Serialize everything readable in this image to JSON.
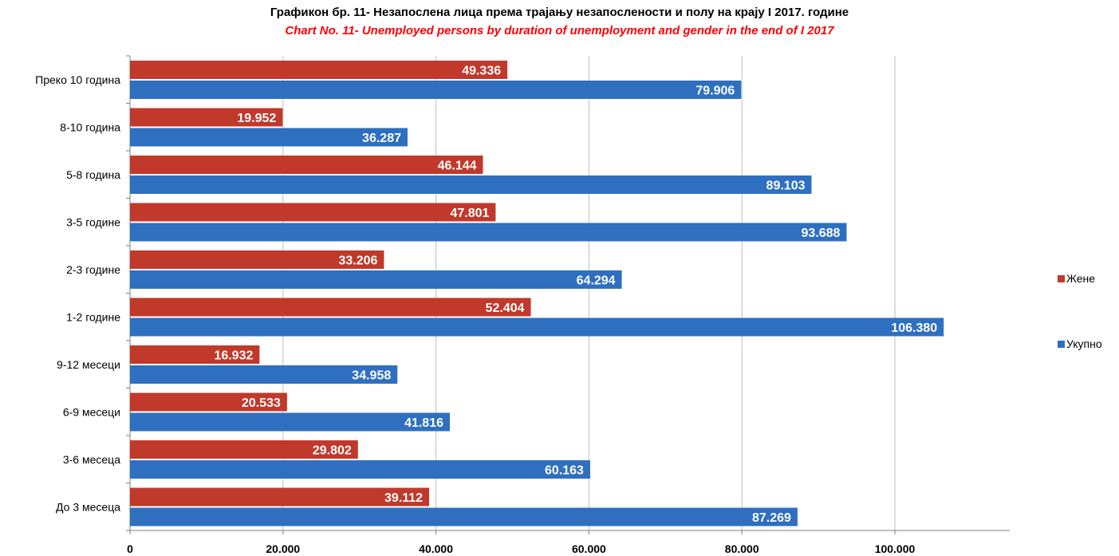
{
  "chart_data": {
    "type": "bar",
    "orientation": "horizontal",
    "title": "Графикон  бр. 11- Незапослена лица према трајању незапослености и полу на крају I 2017. године",
    "subtitle": "Chart No. 11- Unemployed persons by duration of unemployment and  gender in the end of I 2017",
    "categories": [
      "Преко 10 година",
      "8-10 година",
      "5-8 година",
      "3-5 године",
      "2-3 године",
      "1-2 године",
      "9-12 месеци",
      "6-9 месеци",
      "3-6 месеца",
      "До 3 месеца"
    ],
    "series": [
      {
        "name": "Жене",
        "color": "#c0392b",
        "values": [
          49336,
          19952,
          46144,
          47801,
          33206,
          52404,
          16932,
          20533,
          29802,
          39112
        ],
        "labels": [
          "49.336",
          "19.952",
          "46.144",
          "47.801",
          "33.206",
          "52.404",
          "16.932",
          "20.533",
          "29.802",
          "39.112"
        ]
      },
      {
        "name": "Укупно",
        "color": "#2e6fc0",
        "values": [
          79906,
          36287,
          89103,
          93688,
          64294,
          106380,
          34958,
          41816,
          60163,
          87269
        ],
        "labels": [
          "79.906",
          "36.287",
          "89.103",
          "93.688",
          "64.294",
          "106.380",
          "34.958",
          "41.816",
          "60.163",
          "87.269"
        ]
      }
    ],
    "xlim": [
      0,
      115000
    ],
    "xticks": [
      0,
      20000,
      40000,
      60000,
      80000,
      100000
    ],
    "xtick_labels": [
      "0",
      "20.000",
      "40.000",
      "60.000",
      "80.000",
      "100.000"
    ],
    "grid": true,
    "legend_position": "right"
  }
}
